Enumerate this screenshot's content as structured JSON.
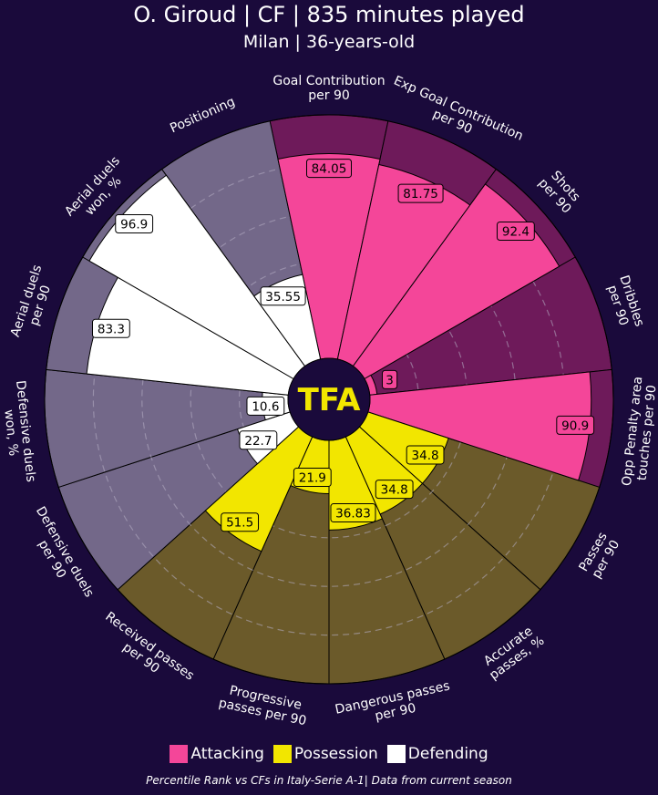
{
  "chart_data": {
    "type": "radial-bar",
    "title": "O. Giroud | CF | 835 minutes played",
    "subtitle": "Milan | 36-years-old",
    "center_logo": "TFA",
    "range": [
      0,
      100
    ],
    "grid": true,
    "legend": [
      {
        "name": "Attacking",
        "color": "#f44699"
      },
      {
        "name": "Possession",
        "color": "#f2e600"
      },
      {
        "name": "Defending",
        "color": "#ffffff"
      }
    ],
    "categories": [
      {
        "label": "Goal Contribution\nper 90",
        "value": 84.05,
        "group": "Attacking"
      },
      {
        "label": "Exp Goal Contribution\nper 90",
        "value": 81.75,
        "group": "Attacking"
      },
      {
        "label": "Shots\nper 90",
        "value": 92.4,
        "group": "Attacking"
      },
      {
        "label": "Dribbles\nper 90",
        "value": 3.0,
        "group": "Attacking"
      },
      {
        "label": "Opp Penalty area\ntouches per 90",
        "value": 90.9,
        "group": "Attacking"
      },
      {
        "label": "Passes\nper 90",
        "value": 34.8,
        "group": "Possession"
      },
      {
        "label": "Accurate\npasses, %",
        "value": 34.8,
        "group": "Possession"
      },
      {
        "label": "Dangerous passes\nper 90",
        "value": 36.83,
        "group": "Possession"
      },
      {
        "label": "Progressive\npasses per 90",
        "value": 21.9,
        "group": "Possession"
      },
      {
        "label": "Received passes\nper 90",
        "value": 51.5,
        "group": "Possession"
      },
      {
        "label": "Defensive duels\nper 90",
        "value": 22.7,
        "group": "Defending"
      },
      {
        "label": "Defensive duels\nwon, %",
        "value": 10.6,
        "group": "Defending"
      },
      {
        "label": "Aerial duels\nper 90",
        "value": 83.3,
        "group": "Defending"
      },
      {
        "label": "Aerial duels\nwon, %",
        "value": 96.9,
        "group": "Defending"
      },
      {
        "label": "Positioning",
        "value": 35.55,
        "group": "Defending"
      }
    ],
    "footnote": "Percentile Rank vs CFs in Italy-Serie A-1| Data from current season"
  },
  "colors": {
    "background": "#1a0a3b",
    "Attacking": {
      "fill": "#f44699",
      "bg": "#6e1a5a"
    },
    "Possession": {
      "fill": "#f2e600",
      "bg": "#6b5a2a"
    },
    "Defending": {
      "fill": "#ffffff",
      "bg": "#736889"
    }
  }
}
